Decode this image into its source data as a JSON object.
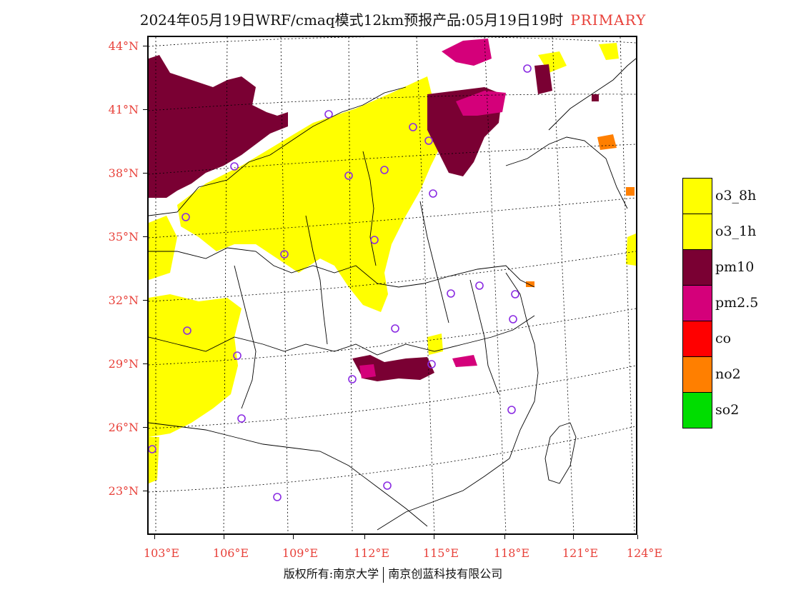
{
  "title": {
    "text": "2024年05月19日WRF/cmaq模式12km预报产品:05月19日19时",
    "tag": "PRIMARY"
  },
  "map": {
    "lat_labels": [
      "44°N",
      "41°N",
      "38°N",
      "35°N",
      "32°N",
      "29°N",
      "26°N",
      "23°N"
    ],
    "lon_labels": [
      "103°E",
      "106°E",
      "109°E",
      "112°E",
      "115°E",
      "118°E",
      "121°E",
      "124°E"
    ]
  },
  "legend": {
    "items": [
      {
        "label": "o3_8h",
        "color": "#ffff00"
      },
      {
        "label": "o3_1h",
        "color": "#ffff00"
      },
      {
        "label": "pm10",
        "color": "#7a0033"
      },
      {
        "label": "pm2.5",
        "color": "#d4007a"
      },
      {
        "label": "co",
        "color": "#ff0000"
      },
      {
        "label": "no2",
        "color": "#ff7f00"
      },
      {
        "label": "so2",
        "color": "#00dd00"
      }
    ]
  },
  "footer": {
    "left": "版权所有:南京大学",
    "right": "南京创蓝科技有限公司"
  },
  "colors": {
    "label_red": "#e8413a",
    "station_marker": "#8a2be2"
  }
}
